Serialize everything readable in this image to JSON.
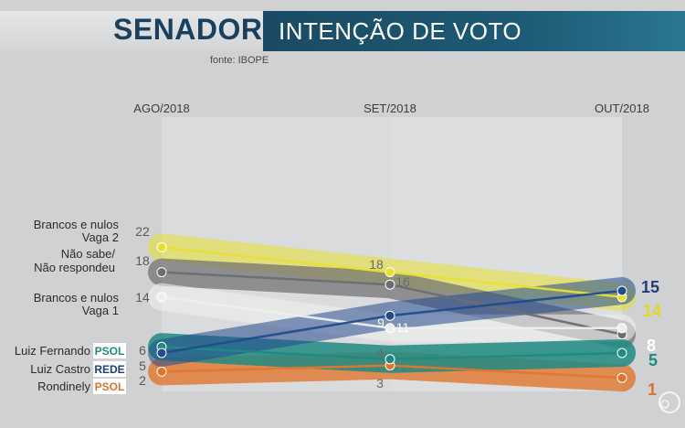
{
  "header": {
    "title": "SENADOR",
    "subtitle": "INTENÇÃO DE VOTO",
    "source": "fonte: IBOPE"
  },
  "chart_data": {
    "type": "line",
    "categories": [
      "AGO/2018",
      "SET/2018",
      "OUT/2018"
    ],
    "title": "SENADOR",
    "subtitle": "INTENÇÃO DE VOTO",
    "xlabel": "",
    "ylabel": "",
    "grid": false,
    "legend": "left",
    "series": [
      {
        "key": "brancos2",
        "label_lines": [
          "Brancos e nulos",
          "Vaga 2"
        ],
        "party": "",
        "values": [
          22,
          18,
          14
        ],
        "color": "#e8e030",
        "text_color": "#6a6a6a",
        "final_color": "#e3d722",
        "band_opacity": 0.55
      },
      {
        "key": "naosabe",
        "label_lines": [
          "Não sabe/",
          "Não respondeu"
        ],
        "party": "",
        "values": [
          18,
          16,
          8
        ],
        "color": "#6e6e70",
        "text_color": "#6a6a6a",
        "final_color": "#ffffff",
        "band_opacity": 0.7
      },
      {
        "key": "brancos1",
        "label_lines": [
          "Brancos e nulos",
          "Vaga 1"
        ],
        "party": "",
        "values": [
          14,
          9,
          9
        ],
        "color": "#eeeeee",
        "text_color": "#ffffff",
        "final_color": "#ffffff",
        "band_opacity": 0.6
      },
      {
        "key": "luizfernando",
        "label_lines": [
          "Luiz Fernando"
        ],
        "party": "PSOL",
        "party_color": "#1f8a82",
        "values": [
          6,
          4,
          5
        ],
        "color": "#1f8a82",
        "text_color": "#6a6a6a",
        "final_color": "#1f8a82",
        "band_opacity": 0.85
      },
      {
        "key": "luizcastro",
        "label_lines": [
          "Luiz Castro"
        ],
        "party": "REDE",
        "party_color": "#1e3f78",
        "values": [
          5,
          11,
          15
        ],
        "color": "#234b8c",
        "text_color": "#ffffff",
        "final_color": "#1e3f78",
        "band_opacity": 0.55
      },
      {
        "key": "rondinely",
        "label_lines": [
          "Rondinely"
        ],
        "party": "PSOL",
        "party_color": "#d9742f",
        "values": [
          2,
          3,
          1
        ],
        "color": "#e0762e",
        "text_color": "#6a6a6a",
        "final_color": "#d9742f",
        "band_opacity": 0.8
      }
    ]
  }
}
